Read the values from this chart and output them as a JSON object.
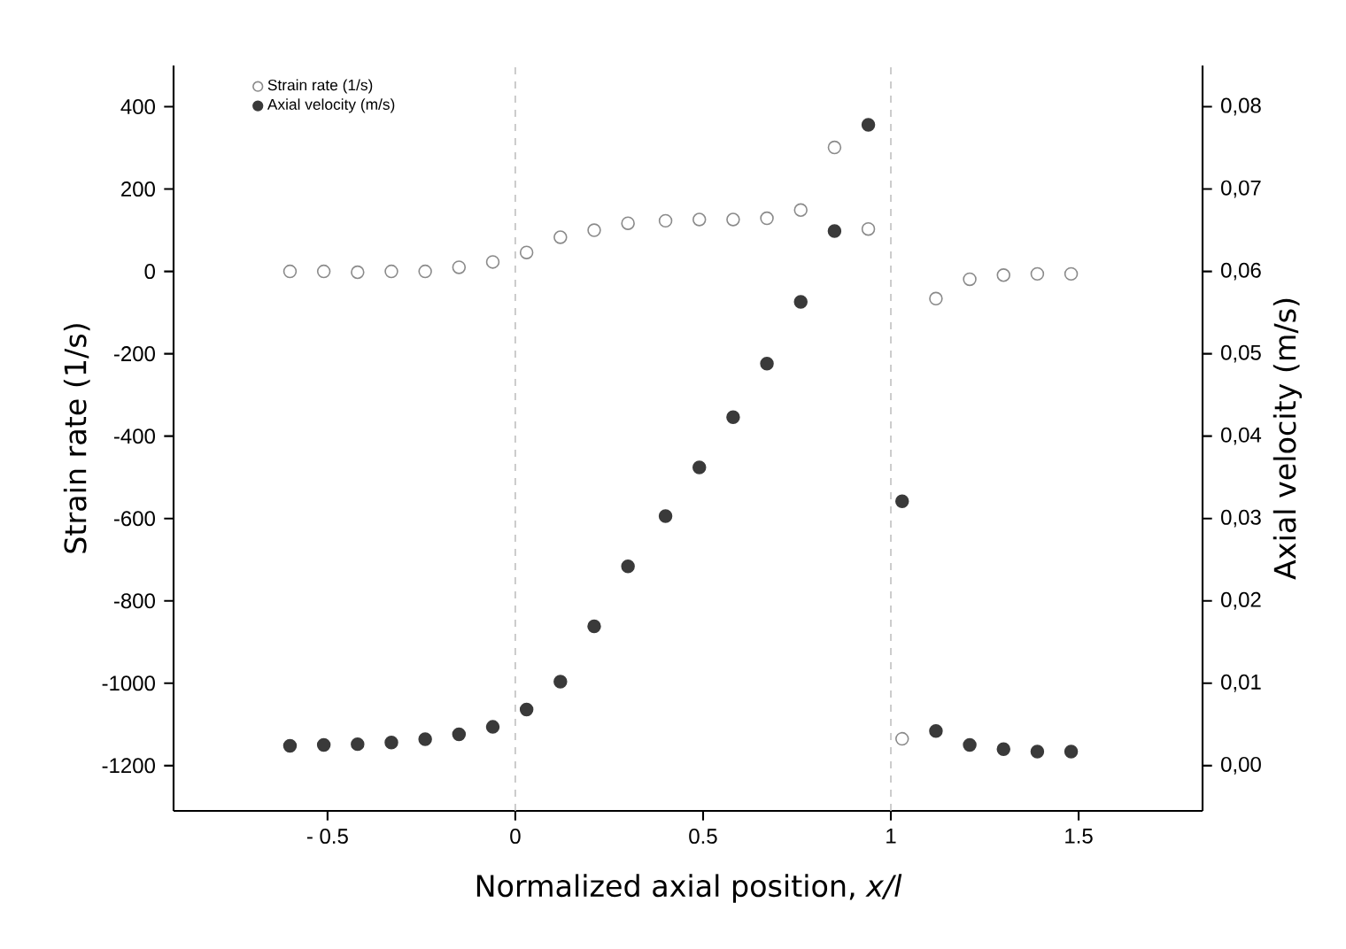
{
  "chart_data": {
    "type": "scatter",
    "xlabel": "Normalized axial position, *x/l*",
    "ylabel": "Strain rate (1/s)",
    "y2label": "Axial velocity (m/s)",
    "x": [
      -0.6,
      -0.51,
      -0.42,
      -0.33,
      -0.24,
      -0.15,
      -0.06,
      0.03,
      0.12,
      0.21,
      0.3,
      0.4,
      0.49,
      0.58,
      0.67,
      0.76,
      0.85,
      0.94,
      1.03,
      1.12,
      1.21,
      1.3,
      1.39,
      1.48
    ],
    "series": [
      {
        "name": "Strain rate (1/s)",
        "color": "#8a8a8a",
        "values": [
          0,
          0,
          -2,
          0,
          0,
          10,
          23,
          46,
          83,
          100,
          117,
          123,
          126,
          126,
          129,
          149,
          301,
          103,
          -1135,
          -66,
          -19,
          -9,
          -6,
          -6
        ]
      },
      {
        "name": "Axial velocity (m/s)",
        "color": "#3a3a3a",
        "axis": "y2",
        "values": [
          0.0024,
          0.0025,
          0.0026,
          0.0028,
          0.0032,
          0.0038,
          0.0047,
          0.0068,
          0.0102,
          0.0169,
          0.0242,
          0.0303,
          0.0362,
          0.0423,
          0.0488,
          0.0563,
          0.0649,
          0.0778,
          0.0321,
          0.0042,
          0.0025,
          0.002,
          0.0017,
          0.0017
        ]
      }
    ],
    "xlim": [
      -0.91,
      1.83
    ],
    "xticks": [
      {
        "value": -0.5,
        "label": "- 0.5"
      },
      0,
      0.5,
      1,
      1.5
    ],
    "ylim": [
      -1310,
      500
    ],
    "yticks": [
      -1200,
      -1000,
      -800,
      -600,
      -400,
      -200,
      0,
      200,
      400
    ],
    "y2lim": [
      -0.0055,
      0.085
    ],
    "y2ticks": [
      {
        "value": 0,
        "label": "0,00"
      },
      {
        "value": 0.01,
        "label": "0,01"
      },
      {
        "value": 0.02,
        "label": "0,02"
      },
      {
        "value": 0.03,
        "label": "0,03"
      },
      {
        "value": 0.04,
        "label": "0,04"
      },
      {
        "value": 0.05,
        "label": "0,05"
      },
      {
        "value": 0.06,
        "label": "0,06"
      },
      {
        "value": 0.07,
        "label": "0,07"
      },
      {
        "value": 0.08,
        "label": "0,08"
      }
    ],
    "ref_lines": [
      {
        "axis": "x",
        "value": 0,
        "color": "#c0c0c0",
        "line_style": "dashed"
      },
      {
        "axis": "x",
        "value": 1,
        "color": "#c0c0c0",
        "line_style": "dashed"
      }
    ],
    "legend": "top left"
  }
}
